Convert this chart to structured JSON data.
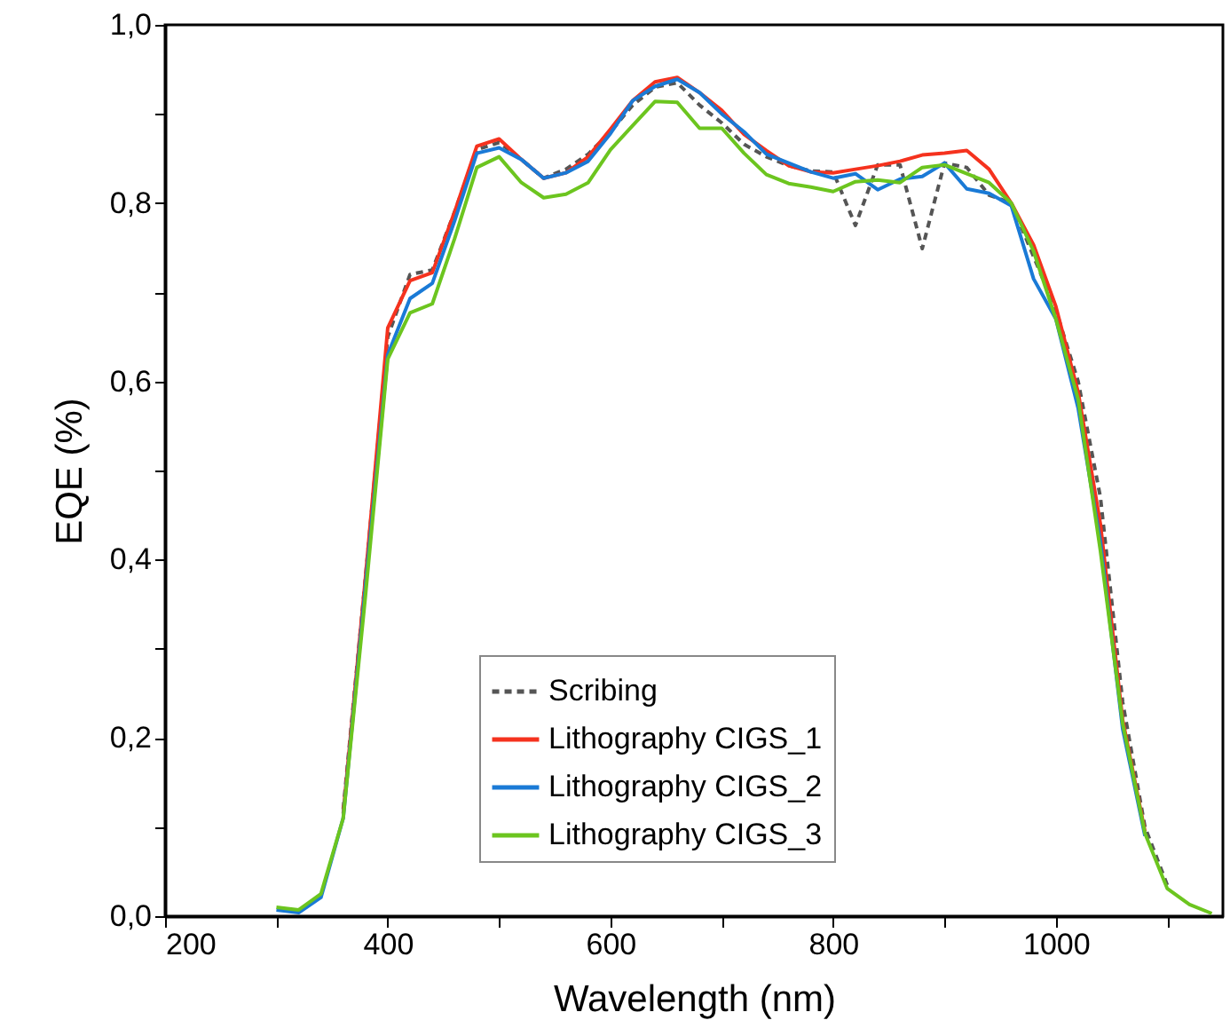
{
  "chart_data": {
    "type": "line",
    "xlabel": "Wavelength (nm)",
    "ylabel": "EQE (%)",
    "x": [
      300,
      320,
      340,
      360,
      380,
      400,
      420,
      440,
      460,
      480,
      500,
      520,
      540,
      560,
      580,
      600,
      620,
      640,
      660,
      680,
      700,
      720,
      740,
      760,
      780,
      800,
      820,
      840,
      860,
      880,
      900,
      920,
      940,
      960,
      980,
      1000,
      1020,
      1040,
      1060,
      1080,
      1100,
      1120,
      1140
    ],
    "series": [
      {
        "name": "Scribing",
        "color": "#555555",
        "line_style": "dashed",
        "values": [
          null,
          null,
          null,
          0.12,
          0.38,
          0.65,
          0.72,
          0.725,
          0.79,
          0.86,
          0.868,
          0.849,
          0.828,
          0.838,
          0.855,
          0.88,
          0.91,
          0.93,
          0.935,
          0.91,
          0.89,
          0.866,
          0.852,
          0.842,
          0.836,
          0.835,
          0.775,
          0.843,
          0.843,
          0.749,
          0.845,
          0.84,
          0.809,
          0.8,
          0.74,
          0.68,
          0.6,
          0.47,
          0.24,
          0.1,
          0.035,
          null,
          null
        ]
      },
      {
        "name": "Lithography CIGS_1",
        "color": "#f5321e",
        "line_style": "solid",
        "values": [
          null,
          null,
          null,
          0.115,
          0.38,
          0.66,
          0.713,
          0.722,
          0.79,
          0.864,
          0.872,
          0.849,
          0.828,
          0.834,
          0.852,
          0.883,
          0.915,
          0.936,
          0.941,
          0.924,
          0.904,
          0.877,
          0.859,
          0.842,
          0.835,
          0.834,
          0.838,
          0.842,
          0.847,
          0.854,
          0.856,
          0.859,
          0.838,
          0.8,
          0.753,
          0.684,
          0.588,
          0.44,
          0.22,
          0.095,
          null,
          null,
          null
        ]
      },
      {
        "name": "Lithography CIGS_2",
        "color": "#1a7ad6",
        "line_style": "solid",
        "values": [
          0.007,
          0.004,
          0.021,
          0.11,
          0.37,
          0.63,
          0.693,
          0.71,
          0.78,
          0.856,
          0.862,
          0.849,
          0.828,
          0.834,
          0.847,
          0.878,
          0.915,
          0.931,
          0.939,
          0.924,
          0.9,
          0.88,
          0.855,
          0.845,
          0.835,
          0.828,
          0.833,
          0.815,
          0.827,
          0.83,
          0.845,
          0.816,
          0.811,
          0.797,
          0.715,
          0.67,
          0.57,
          0.42,
          0.21,
          0.09,
          null,
          null,
          null
        ]
      },
      {
        "name": "Lithography CIGS_3",
        "color": "#6cc51f",
        "line_style": "solid",
        "values": [
          0.01,
          0.007,
          0.025,
          0.11,
          0.36,
          0.625,
          0.677,
          0.687,
          0.76,
          0.84,
          0.852,
          0.823,
          0.806,
          0.81,
          0.823,
          0.86,
          0.887,
          0.914,
          0.913,
          0.884,
          0.884,
          0.856,
          0.832,
          0.822,
          0.818,
          0.813,
          0.824,
          0.826,
          0.823,
          0.84,
          0.843,
          0.833,
          0.823,
          0.8,
          0.746,
          0.67,
          0.58,
          0.41,
          0.216,
          0.093,
          0.031,
          0.013,
          0.003
        ]
      }
    ],
    "xlim": [
      200,
      1150
    ],
    "xticks": [
      200,
      {
        "value": 300,
        "label": null
      },
      400,
      {
        "value": 500,
        "label": null
      },
      600,
      {
        "value": 700,
        "label": null
      },
      800,
      {
        "value": 900,
        "label": null
      },
      1000,
      {
        "value": 1100,
        "label": null
      }
    ],
    "ylim": [
      0,
      1
    ],
    "yticks": [
      {
        "value": 0,
        "label": "0,0"
      },
      {
        "value": 0.1,
        "label": null
      },
      {
        "value": 0.2,
        "label": "0,2"
      },
      {
        "value": 0.3,
        "label": null
      },
      {
        "value": 0.4,
        "label": "0,4"
      },
      {
        "value": 0.5,
        "label": null
      },
      {
        "value": 0.6,
        "label": "0,6"
      },
      {
        "value": 0.7,
        "label": null
      },
      {
        "value": 0.8,
        "label": "0,8"
      },
      {
        "value": 0.9,
        "label": null
      },
      {
        "value": 1,
        "label": "1,0"
      }
    ],
    "legend": "bottom"
  }
}
